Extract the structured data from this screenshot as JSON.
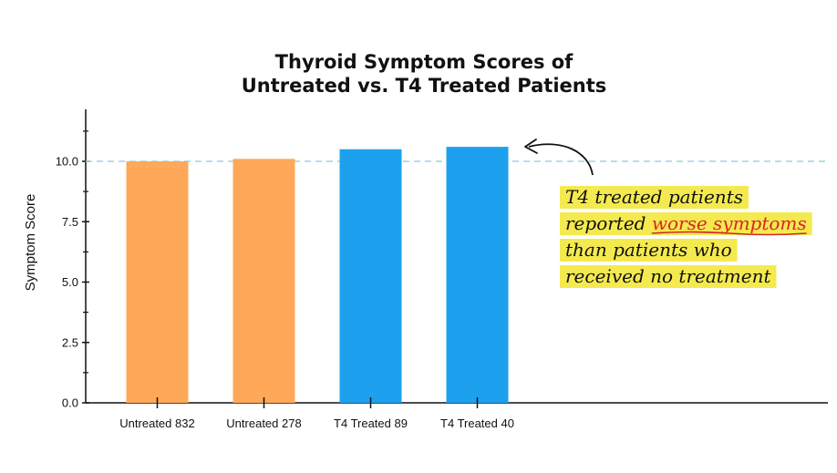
{
  "chart_data": {
    "type": "bar",
    "title_lines": [
      "Thyroid Symptom Scores of",
      "Untreated vs. T4 Treated Patients"
    ],
    "xlabel": "",
    "ylabel": "Symptom Score",
    "ylim": [
      0,
      12
    ],
    "yticks": [
      "0.0",
      "2.5",
      "5.0",
      "7.5",
      "10.0"
    ],
    "categories": [
      "Untreated 832",
      "Untreated 278",
      "T4 Treated 89",
      "T4 Treated 40"
    ],
    "values": [
      10.0,
      10.1,
      10.5,
      10.6
    ],
    "bar_colors": [
      "#ffa85a",
      "#ffa85a",
      "#1da1ef",
      "#1da1ef"
    ],
    "reference_line": {
      "value": 10.0,
      "color": "#9ed3e6",
      "style": "dashed"
    },
    "grid": false,
    "annotation": {
      "lines": [
        {
          "before": "T4 treated patients",
          "emphasis": "",
          "after": ""
        },
        {
          "before": "reported ",
          "emphasis": "worse symptoms",
          "after": ""
        },
        {
          "before": "than patients who",
          "emphasis": "",
          "after": ""
        },
        {
          "before": "received no treatment",
          "emphasis": "",
          "after": ""
        }
      ],
      "highlight_color": "#f4ea4f",
      "emphasis_color": "#d8252a"
    }
  }
}
